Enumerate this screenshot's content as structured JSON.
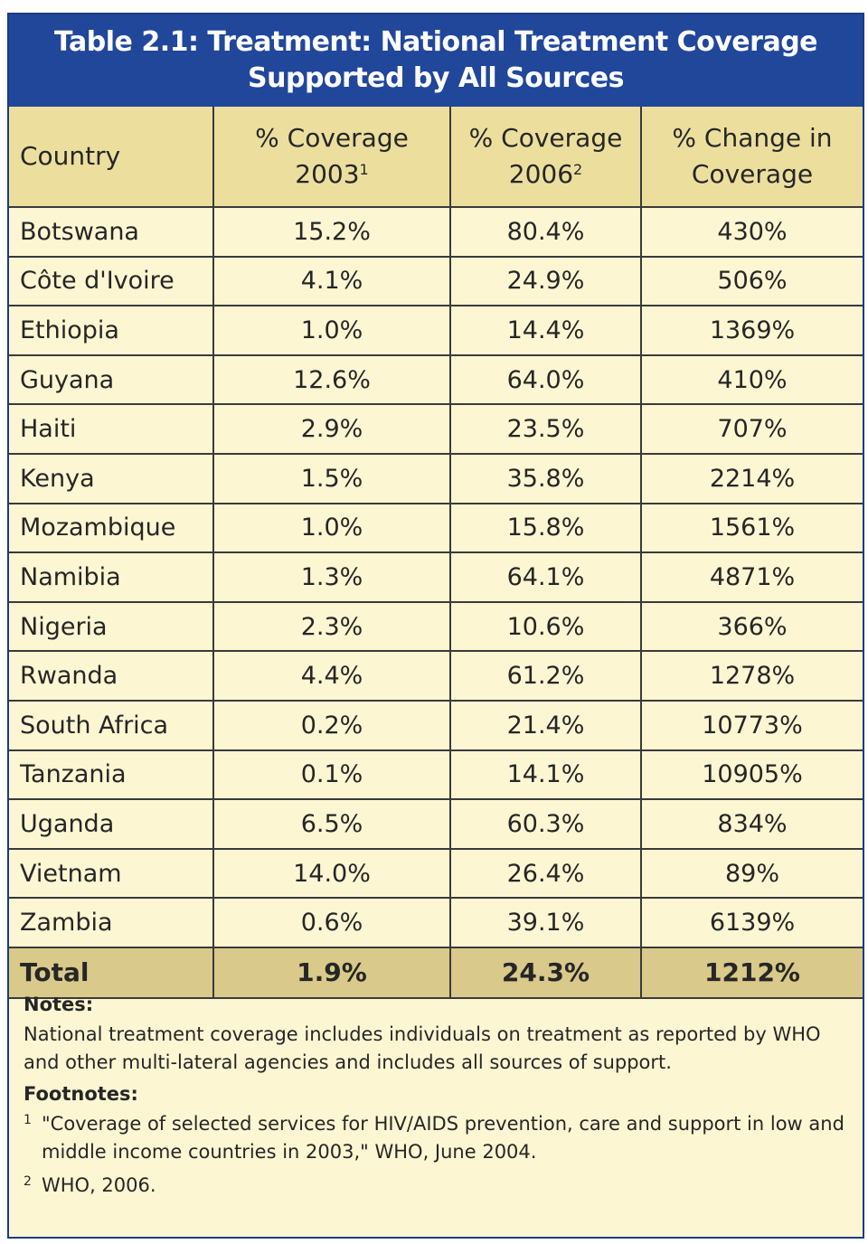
{
  "title": {
    "line1": "Table 2.1: Treatment: National Treatment Coverage",
    "line2": "Supported by All Sources"
  },
  "table": {
    "headers": {
      "country": "Country",
      "cov2003_line1": "% Coverage",
      "cov2003_line2": "2003",
      "cov2003_sup": "1",
      "cov2006_line1": "% Coverage",
      "cov2006_line2": "2006",
      "cov2006_sup": "2",
      "change_line1": "% Change in",
      "change_line2": "Coverage"
    },
    "rows": [
      {
        "country": "Botswana",
        "cov2003": "15.2%",
        "cov2006": "80.4%",
        "change": "430%"
      },
      {
        "country": "Côte d'Ivoire",
        "cov2003": "4.1%",
        "cov2006": "24.9%",
        "change": "506%"
      },
      {
        "country": "Ethiopia",
        "cov2003": "1.0%",
        "cov2006": "14.4%",
        "change": "1369%"
      },
      {
        "country": "Guyana",
        "cov2003": "12.6%",
        "cov2006": "64.0%",
        "change": "410%"
      },
      {
        "country": "Haiti",
        "cov2003": "2.9%",
        "cov2006": "23.5%",
        "change": "707%"
      },
      {
        "country": "Kenya",
        "cov2003": "1.5%",
        "cov2006": "35.8%",
        "change": "2214%"
      },
      {
        "country": "Mozambique",
        "cov2003": "1.0%",
        "cov2006": "15.8%",
        "change": "1561%"
      },
      {
        "country": "Namibia",
        "cov2003": "1.3%",
        "cov2006": "64.1%",
        "change": "4871%"
      },
      {
        "country": "Nigeria",
        "cov2003": "2.3%",
        "cov2006": "10.6%",
        "change": "366%"
      },
      {
        "country": "Rwanda",
        "cov2003": "4.4%",
        "cov2006": "61.2%",
        "change": "1278%"
      },
      {
        "country": "South Africa",
        "cov2003": "0.2%",
        "cov2006": "21.4%",
        "change": "10773%"
      },
      {
        "country": "Tanzania",
        "cov2003": "0.1%",
        "cov2006": "14.1%",
        "change": "10905%"
      },
      {
        "country": "Uganda",
        "cov2003": "6.5%",
        "cov2006": "60.3%",
        "change": "834%"
      },
      {
        "country": "Vietnam",
        "cov2003": "14.0%",
        "cov2006": "26.4%",
        "change": "89%"
      },
      {
        "country": "Zambia",
        "cov2003": "0.6%",
        "cov2006": "39.1%",
        "change": "6139%"
      }
    ],
    "total": {
      "country": "Total",
      "cov2003": "1.9%",
      "cov2006": "24.3%",
      "change": "1212%"
    }
  },
  "notes": {
    "notes_heading": "Notes:",
    "notes_text": "National treatment coverage includes individuals on treatment as reported by WHO and other multi-lateral agencies and includes all sources of support.",
    "footnotes_heading": "Footnotes:",
    "footnotes": [
      {
        "mark": "1",
        "text": "\"Coverage of selected services for HIV/AIDS prevention, care and support in low and middle income countries in 2003,\" WHO, June 2004."
      },
      {
        "mark": "2",
        "text": "WHO, 2006."
      }
    ]
  },
  "colors": {
    "title_bg": "#21479b",
    "header_bg": "#ecdf9e",
    "body_bg": "#fdf6d3",
    "total_bg": "#d9c98a"
  }
}
